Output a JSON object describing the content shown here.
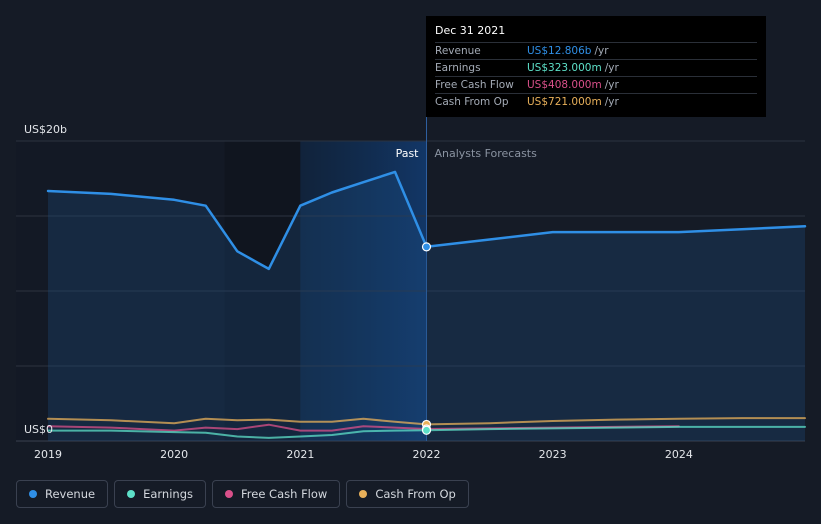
{
  "chart_data": {
    "type": "line",
    "y_top_label": "US$20b",
    "y_bottom_label": "US$0",
    "ylim": [
      0,
      20
    ],
    "xlim": [
      2019,
      2025
    ],
    "x_tick_labels": [
      "2019",
      "2020",
      "2021",
      "2022",
      "2023",
      "2024"
    ],
    "x_ticks": [
      2019,
      2020,
      2021,
      2022,
      2023,
      2024
    ],
    "past_label": "Past",
    "forecast_label": "Analysts Forecasts",
    "split_x": 2022.0,
    "series": [
      {
        "name": "Revenue",
        "color": "#2f8fe6",
        "points": [
          [
            2019.0,
            16.6
          ],
          [
            2019.5,
            16.4
          ],
          [
            2020.0,
            16.0
          ],
          [
            2020.25,
            15.6
          ],
          [
            2020.5,
            12.5
          ],
          [
            2020.75,
            11.3
          ],
          [
            2021.0,
            15.6
          ],
          [
            2021.25,
            16.5
          ],
          [
            2021.5,
            17.2
          ],
          [
            2021.75,
            17.9
          ],
          [
            2022.0,
            12.8
          ],
          [
            2022.5,
            13.3
          ],
          [
            2023.0,
            13.8
          ],
          [
            2023.5,
            13.8
          ],
          [
            2024.0,
            13.8
          ],
          [
            2024.5,
            14.0
          ],
          [
            2025.0,
            14.2
          ]
        ]
      },
      {
        "name": "Earnings",
        "color": "#5de0c8",
        "points": [
          [
            2019.0,
            0.3
          ],
          [
            2019.5,
            0.3
          ],
          [
            2020.0,
            0.2
          ],
          [
            2020.25,
            0.15
          ],
          [
            2020.5,
            -0.1
          ],
          [
            2020.75,
            -0.2
          ],
          [
            2021.0,
            -0.1
          ],
          [
            2021.25,
            0.0
          ],
          [
            2021.5,
            0.25
          ],
          [
            2021.75,
            0.3
          ],
          [
            2022.0,
            0.32
          ],
          [
            2022.5,
            0.4
          ],
          [
            2023.0,
            0.45
          ],
          [
            2023.5,
            0.5
          ],
          [
            2024.0,
            0.55
          ],
          [
            2024.5,
            0.55
          ],
          [
            2025.0,
            0.55
          ]
        ]
      },
      {
        "name": "Free Cash Flow",
        "color": "#d9508a",
        "points": [
          [
            2019.0,
            0.6
          ],
          [
            2019.5,
            0.5
          ],
          [
            2020.0,
            0.3
          ],
          [
            2020.25,
            0.5
          ],
          [
            2020.5,
            0.4
          ],
          [
            2020.75,
            0.7
          ],
          [
            2021.0,
            0.3
          ],
          [
            2021.25,
            0.3
          ],
          [
            2021.5,
            0.6
          ],
          [
            2021.75,
            0.5
          ],
          [
            2022.0,
            0.41
          ],
          [
            2022.5,
            0.45
          ],
          [
            2023.0,
            0.5
          ],
          [
            2023.5,
            0.55
          ],
          [
            2024.0,
            0.6
          ]
        ]
      },
      {
        "name": "Cash From Op",
        "color": "#e8b05a",
        "points": [
          [
            2019.0,
            1.1
          ],
          [
            2019.5,
            1.0
          ],
          [
            2020.0,
            0.8
          ],
          [
            2020.25,
            1.1
          ],
          [
            2020.5,
            1.0
          ],
          [
            2020.75,
            1.05
          ],
          [
            2021.0,
            0.9
          ],
          [
            2021.25,
            0.9
          ],
          [
            2021.5,
            1.1
          ],
          [
            2021.75,
            0.9
          ],
          [
            2022.0,
            0.72
          ],
          [
            2022.5,
            0.8
          ],
          [
            2023.0,
            0.95
          ],
          [
            2023.5,
            1.05
          ],
          [
            2024.0,
            1.1
          ],
          [
            2024.5,
            1.15
          ],
          [
            2025.0,
            1.15
          ]
        ]
      }
    ],
    "grid": true,
    "legend_position": "bottom-left"
  },
  "tooltip": {
    "date": "Dec 31 2021",
    "rows": [
      {
        "label": "Revenue",
        "value": "US$12.806b",
        "unit": "/yr",
        "color": "#2f8fe6"
      },
      {
        "label": "Earnings",
        "value": "US$323.000m",
        "unit": "/yr",
        "color": "#5de0c8"
      },
      {
        "label": "Free Cash Flow",
        "value": "US$408.000m",
        "unit": "/yr",
        "color": "#d9508a"
      },
      {
        "label": "Cash From Op",
        "value": "US$721.000m",
        "unit": "/yr",
        "color": "#e8b05a"
      }
    ]
  },
  "legend": [
    {
      "label": "Revenue",
      "color": "#2f8fe6"
    },
    {
      "label": "Earnings",
      "color": "#5de0c8"
    },
    {
      "label": "Free Cash Flow",
      "color": "#d9508a"
    },
    {
      "label": "Cash From Op",
      "color": "#e8b05a"
    }
  ]
}
